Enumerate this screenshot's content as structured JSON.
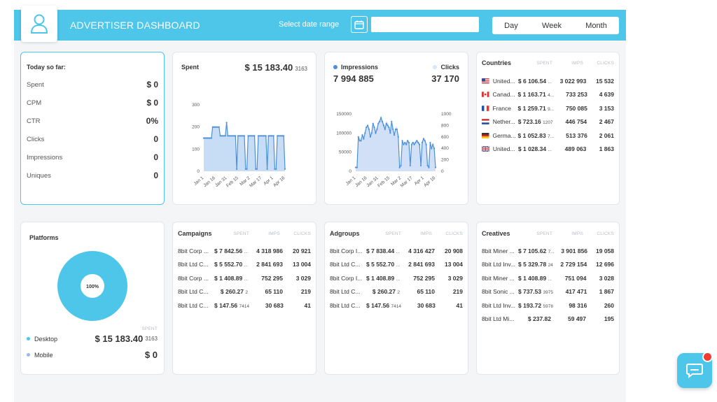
{
  "header": {
    "title": "ADVERTISER DASHBOARD",
    "date_label": "Select date range",
    "date_value": "",
    "date_comma": ",",
    "periods": [
      "Day",
      "Week",
      "Month"
    ]
  },
  "today": {
    "title": "Today so far:",
    "rows": [
      {
        "label": "Spent",
        "value": "$ 0"
      },
      {
        "label": "CPM",
        "value": "$ 0"
      },
      {
        "label": "CTR",
        "value": "0%"
      },
      {
        "label": "Clicks",
        "value": "0"
      },
      {
        "label": "Impressions",
        "value": "0"
      },
      {
        "label": "Uniques",
        "value": "0"
      }
    ]
  },
  "spent": {
    "title": "Spent",
    "value": "$ 15 183.40",
    "sub": "3163"
  },
  "impclicks": {
    "impressions_label": "Impressions",
    "impressions_value": "7 994 885",
    "clicks_label": "Clicks",
    "clicks_value": "37 170"
  },
  "countries": {
    "title": "Countries",
    "cols": [
      "SPENT",
      "IMPS",
      "CLICKS"
    ],
    "rows": [
      {
        "flag": "us",
        "name": "United...",
        "spent": "$ 6 106.54",
        "sup": "...",
        "imps": "3 022 993",
        "clicks": "15 532"
      },
      {
        "flag": "ca",
        "name": "Canad...",
        "spent": "$ 1 163.71",
        "sup": "4...",
        "imps": "733 253",
        "clicks": "4 639"
      },
      {
        "flag": "fr",
        "name": "France",
        "spent": "$ 1 259.71",
        "sup": "9...",
        "imps": "750 085",
        "clicks": "3 153"
      },
      {
        "flag": "nl",
        "name": "Nether...",
        "spent": "$ 723.16",
        "sup": "1207",
        "imps": "446 754",
        "clicks": "2 467"
      },
      {
        "flag": "de",
        "name": "Germa...",
        "spent": "$ 1 052.83",
        "sup": "7...",
        "imps": "513 376",
        "clicks": "2 061"
      },
      {
        "flag": "gb",
        "name": "United...",
        "spent": "$ 1 028.34",
        "sup": "...",
        "imps": "489 063",
        "clicks": "1 863"
      }
    ]
  },
  "platforms": {
    "title": "Platforms",
    "donut_label": "100%",
    "spent_col": "SPENT",
    "rows": [
      {
        "name": "Desktop",
        "value": "$ 15 183.40",
        "sup": "3163",
        "color": "#4dc6ea"
      },
      {
        "name": "Mobile",
        "value": "$ 0",
        "sup": "",
        "color": "#9cb7f0"
      }
    ]
  },
  "campaigns": {
    "title": "Campaigns",
    "cols": [
      "SPENT",
      "IMPS",
      "CLICKS"
    ],
    "rows": [
      {
        "name": "8bit Corp ...",
        "spent": "$ 7 842.56",
        "sup": "...",
        "imps": "4 318 986",
        "clicks": "20 921"
      },
      {
        "name": "8bit Ltd C...",
        "spent": "$ 5 552.70",
        "sup": "...",
        "imps": "2 841 693",
        "clicks": "13 004"
      },
      {
        "name": "8bit Corp ...",
        "spent": "$ 1 408.89",
        "sup": "...",
        "imps": "752 295",
        "clicks": "3 029"
      },
      {
        "name": "8bit Ltd C...",
        "spent": "$ 260.27",
        "sup": "2",
        "imps": "65 110",
        "clicks": "219"
      },
      {
        "name": "8bit Ltd C...",
        "spent": "$ 147.56",
        "sup": "7414",
        "imps": "30 683",
        "clicks": "41"
      }
    ]
  },
  "adgroups": {
    "title": "Adgroups",
    "cols": [
      "SPENT",
      "IMPS",
      "CLICKS"
    ],
    "rows": [
      {
        "name": "8bit Corp I...",
        "spent": "$ 7 838.44",
        "sup": "...",
        "imps": "4 316 427",
        "clicks": "20 908"
      },
      {
        "name": "8bit Ltd C...",
        "spent": "$ 5 552.70",
        "sup": "...",
        "imps": "2 841 693",
        "clicks": "13 004"
      },
      {
        "name": "8bit Corp I...",
        "spent": "$ 1 408.89",
        "sup": "...",
        "imps": "752 295",
        "clicks": "3 029"
      },
      {
        "name": "8bit Ltd C...",
        "spent": "$ 260.27",
        "sup": "2",
        "imps": "65 110",
        "clicks": "219"
      },
      {
        "name": "8bit Ltd C...",
        "spent": "$ 147.56",
        "sup": "7414",
        "imps": "30 683",
        "clicks": "41"
      }
    ]
  },
  "creatives": {
    "title": "Creatives",
    "cols": [
      "SPENT",
      "IMPS",
      "CLICKS"
    ],
    "rows": [
      {
        "name": "8bit Miner ...",
        "spent": "$ 7 105.62",
        "sup": "7...",
        "imps": "3 901 856",
        "clicks": "19 058"
      },
      {
        "name": "8bit Ltd Inv...",
        "spent": "$ 5 329.78",
        "sup": "24",
        "imps": "2 729 154",
        "clicks": "12 696"
      },
      {
        "name": "8bit Miner ...",
        "spent": "$ 1 408.89",
        "sup": "...",
        "imps": "751 094",
        "clicks": "3 028"
      },
      {
        "name": "8bit Sonic ...",
        "spent": "$ 737.53",
        "sup": "3975",
        "imps": "417 471",
        "clicks": "1 867"
      },
      {
        "name": "8bit Ltd Inv...",
        "spent": "$ 193.72",
        "sup": "5978",
        "imps": "98 316",
        "clicks": "260"
      },
      {
        "name": "8bit Ltd Mi...",
        "spent": "$ 237.82",
        "sup": "",
        "imps": "59 497",
        "clicks": "195"
      }
    ]
  },
  "colors": {
    "accent": "#4dc6ea",
    "line": "#4a90d9",
    "area": "#c7dcf5",
    "clicks_area": "#dde4f7"
  },
  "chart_data": [
    {
      "type": "area",
      "title": "",
      "x_ticks": [
        "Jan 1",
        "Jan 16",
        "Jan 31",
        "Feb 15",
        "Mar 2",
        "Mar 17",
        "Apr 1",
        "Apr 16"
      ],
      "y_ticks": [
        0,
        100,
        200,
        300
      ],
      "ylim": [
        0,
        300
      ],
      "series": [
        {
          "values": [
            150,
            150,
            150,
            150,
            150,
            150,
            150,
            200,
            200,
            200,
            200,
            200,
            200,
            160,
            160,
            160,
            160,
            160,
            220,
            160,
            160,
            160,
            160,
            160,
            160,
            160,
            10,
            160,
            160,
            160,
            160,
            160,
            160,
            10,
            10,
            160,
            160,
            160,
            160,
            160,
            160,
            10,
            10,
            160,
            160,
            160,
            160,
            160,
            160,
            160,
            10,
            160,
            160,
            160,
            160,
            160,
            10,
            10,
            160,
            160,
            160,
            160,
            160,
            160,
            10
          ]
        }
      ]
    },
    {
      "type": "area",
      "title": "",
      "x_ticks": [
        "Jan 1",
        "Jan 16",
        "Jan 31",
        "Feb 15",
        "Mar 2",
        "Mar 17",
        "Apr 1",
        "Apr 16"
      ],
      "y_left_ticks": [
        0,
        50000,
        100000,
        150000
      ],
      "y_right_ticks": [
        0,
        200,
        400,
        600,
        800,
        1000
      ],
      "series": [
        {
          "name": "Impressions",
          "axis": "left",
          "values": [
            10000,
            10000,
            90000,
            80000,
            80000,
            95000,
            85000,
            100000,
            115000,
            120000,
            110000,
            90000,
            100000,
            125000,
            115000,
            100000,
            110000,
            125000,
            130000,
            140000,
            130000,
            120000,
            110000,
            125000,
            120000,
            115000,
            100000,
            130000,
            110000,
            95000,
            110000,
            110000,
            90000,
            10000,
            15000,
            80000,
            70000,
            75000,
            70000,
            80000,
            75000,
            15000,
            70000,
            75000,
            70000,
            75000,
            80000,
            75000,
            70000,
            15000,
            75000,
            85000,
            80000,
            70000,
            15000,
            10000,
            75000,
            60000,
            70000,
            60000,
            10000
          ]
        },
        {
          "name": "Clicks",
          "axis": "right",
          "values": [
            50,
            100,
            500,
            600,
            560,
            650,
            600,
            700,
            780,
            820,
            760,
            640,
            700,
            850,
            800,
            700,
            780,
            870,
            900,
            980,
            900,
            850,
            780,
            880,
            850,
            800,
            700,
            900,
            780,
            650,
            780,
            780,
            650,
            80,
            100,
            560,
            500,
            520,
            500,
            560,
            540,
            100,
            500,
            520,
            500,
            540,
            560,
            520,
            500,
            100,
            520,
            600,
            560,
            500,
            100,
            80,
            520,
            420,
            500,
            420,
            60
          ]
        }
      ]
    },
    {
      "type": "pie",
      "categories": [
        "Desktop",
        "Mobile"
      ],
      "values": [
        100,
        0
      ]
    }
  ]
}
